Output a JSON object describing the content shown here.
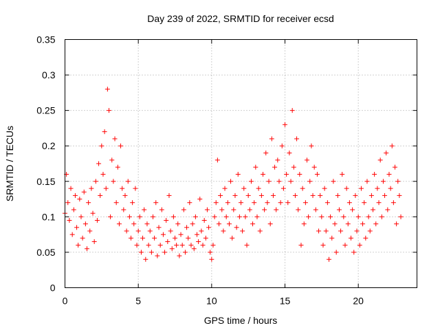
{
  "chart_data": {
    "type": "scatter",
    "title": "Day 239 of 2022, SRMTID for receiver ecsd",
    "xlabel": "GPS time / hours",
    "ylabel": "SRMTID / TECUs",
    "xlim": [
      0,
      24
    ],
    "ylim": [
      0,
      0.35
    ],
    "xticks": [
      0,
      5,
      10,
      15,
      20
    ],
    "xtick_labels": [
      "0",
      "5",
      "10",
      "15",
      "20"
    ],
    "yticks": [
      0,
      0.05,
      0.1,
      0.15,
      0.2,
      0.25,
      0.3,
      0.35
    ],
    "ytick_labels": [
      "0",
      "0.05",
      "0.1",
      "0.15",
      "0.2",
      "0.25",
      "0.3",
      "0.35"
    ],
    "grid": true,
    "marker": "+",
    "color": "#ff0000",
    "series": [
      {
        "name": "SRMTID",
        "x": [
          0.0,
          0.1,
          0.2,
          0.3,
          0.4,
          0.5,
          0.6,
          0.7,
          0.8,
          0.9,
          1.0,
          1.1,
          1.2,
          1.3,
          1.4,
          1.5,
          1.6,
          1.7,
          1.8,
          1.9,
          2.0,
          2.1,
          2.2,
          2.3,
          2.4,
          2.5,
          2.6,
          2.7,
          2.8,
          2.9,
          3.0,
          3.1,
          3.2,
          3.3,
          3.4,
          3.5,
          3.6,
          3.7,
          3.8,
          3.9,
          4.0,
          4.1,
          4.2,
          4.3,
          4.4,
          4.5,
          4.6,
          4.7,
          4.8,
          4.9,
          5.0,
          5.1,
          5.2,
          5.3,
          5.4,
          5.5,
          5.6,
          5.7,
          5.8,
          5.9,
          6.0,
          6.1,
          6.2,
          6.3,
          6.4,
          6.5,
          6.6,
          6.7,
          6.8,
          6.9,
          7.0,
          7.1,
          7.2,
          7.3,
          7.4,
          7.5,
          7.6,
          7.7,
          7.8,
          7.9,
          8.0,
          8.1,
          8.2,
          8.3,
          8.4,
          8.5,
          8.6,
          8.7,
          8.8,
          8.9,
          9.0,
          9.1,
          9.2,
          9.3,
          9.4,
          9.5,
          9.6,
          9.7,
          9.8,
          9.9,
          10.0,
          10.1,
          10.2,
          10.3,
          10.4,
          10.5,
          10.6,
          10.7,
          10.8,
          10.9,
          11.0,
          11.1,
          11.2,
          11.3,
          11.4,
          11.5,
          11.6,
          11.7,
          11.8,
          11.9,
          12.0,
          12.1,
          12.2,
          12.3,
          12.4,
          12.5,
          12.6,
          12.7,
          12.8,
          12.9,
          13.0,
          13.1,
          13.2,
          13.3,
          13.4,
          13.5,
          13.6,
          13.7,
          13.8,
          13.9,
          14.0,
          14.1,
          14.2,
          14.3,
          14.4,
          14.5,
          14.6,
          14.7,
          14.8,
          14.9,
          15.0,
          15.1,
          15.2,
          15.3,
          15.4,
          15.5,
          15.6,
          15.7,
          15.8,
          15.9,
          16.0,
          16.1,
          16.2,
          16.3,
          16.4,
          16.5,
          16.6,
          16.7,
          16.8,
          16.9,
          17.0,
          17.1,
          17.2,
          17.3,
          17.4,
          17.5,
          17.6,
          17.7,
          17.8,
          17.9,
          18.0,
          18.1,
          18.2,
          18.3,
          18.4,
          18.5,
          18.6,
          18.7,
          18.8,
          18.9,
          19.0,
          19.1,
          19.2,
          19.3,
          19.4,
          19.5,
          19.6,
          19.7,
          19.8,
          19.9,
          20.0,
          20.1,
          20.2,
          20.3,
          20.4,
          20.5,
          20.6,
          20.7,
          20.8,
          20.9,
          21.0,
          21.1,
          21.2,
          21.3,
          21.4,
          21.5,
          21.6,
          21.7,
          21.8,
          21.9,
          22.0,
          22.1,
          22.2,
          22.3,
          22.4,
          22.5,
          22.6,
          22.7,
          22.8,
          22.9
        ],
        "y": [
          0.105,
          0.16,
          0.12,
          0.095,
          0.14,
          0.075,
          0.11,
          0.13,
          0.085,
          0.06,
          0.125,
          0.1,
          0.07,
          0.135,
          0.09,
          0.055,
          0.12,
          0.08,
          0.14,
          0.105,
          0.065,
          0.15,
          0.095,
          0.175,
          0.13,
          0.2,
          0.16,
          0.22,
          0.14,
          0.28,
          0.25,
          0.1,
          0.18,
          0.15,
          0.21,
          0.12,
          0.17,
          0.09,
          0.2,
          0.14,
          0.11,
          0.13,
          0.08,
          0.15,
          0.1,
          0.07,
          0.12,
          0.09,
          0.14,
          0.06,
          0.08,
          0.1,
          0.05,
          0.07,
          0.11,
          0.04,
          0.09,
          0.06,
          0.08,
          0.05,
          0.1,
          0.07,
          0.12,
          0.045,
          0.085,
          0.06,
          0.11,
          0.075,
          0.05,
          0.095,
          0.065,
          0.13,
          0.08,
          0.055,
          0.1,
          0.07,
          0.06,
          0.09,
          0.045,
          0.075,
          0.06,
          0.11,
          0.05,
          0.085,
          0.07,
          0.12,
          0.06,
          0.09,
          0.055,
          0.1,
          0.075,
          0.065,
          0.125,
          0.08,
          0.06,
          0.095,
          0.07,
          0.11,
          0.085,
          0.05,
          0.04,
          0.06,
          0.1,
          0.12,
          0.18,
          0.09,
          0.13,
          0.11,
          0.08,
          0.14,
          0.1,
          0.12,
          0.09,
          0.15,
          0.07,
          0.11,
          0.13,
          0.085,
          0.16,
          0.1,
          0.12,
          0.08,
          0.14,
          0.1,
          0.06,
          0.13,
          0.11,
          0.15,
          0.09,
          0.12,
          0.17,
          0.1,
          0.14,
          0.08,
          0.13,
          0.16,
          0.11,
          0.19,
          0.12,
          0.15,
          0.09,
          0.21,
          0.13,
          0.17,
          0.11,
          0.18,
          0.15,
          0.12,
          0.2,
          0.14,
          0.23,
          0.16,
          0.12,
          0.19,
          0.15,
          0.25,
          0.17,
          0.13,
          0.21,
          0.11,
          0.16,
          0.06,
          0.14,
          0.09,
          0.12,
          0.18,
          0.1,
          0.15,
          0.2,
          0.13,
          0.17,
          0.11,
          0.16,
          0.08,
          0.13,
          0.1,
          0.06,
          0.14,
          0.08,
          0.12,
          0.04,
          0.1,
          0.07,
          0.15,
          0.09,
          0.05,
          0.13,
          0.11,
          0.08,
          0.16,
          0.1,
          0.06,
          0.14,
          0.09,
          0.12,
          0.07,
          0.11,
          0.05,
          0.13,
          0.08,
          0.1,
          0.06,
          0.14,
          0.09,
          0.12,
          0.07,
          0.15,
          0.1,
          0.08,
          0.13,
          0.11,
          0.16,
          0.09,
          0.14,
          0.12,
          0.18,
          0.1,
          0.15,
          0.13,
          0.19,
          0.11,
          0.16,
          0.14,
          0.2,
          0.12,
          0.17,
          0.09,
          0.15,
          0.13,
          0.1
        ]
      }
    ]
  }
}
